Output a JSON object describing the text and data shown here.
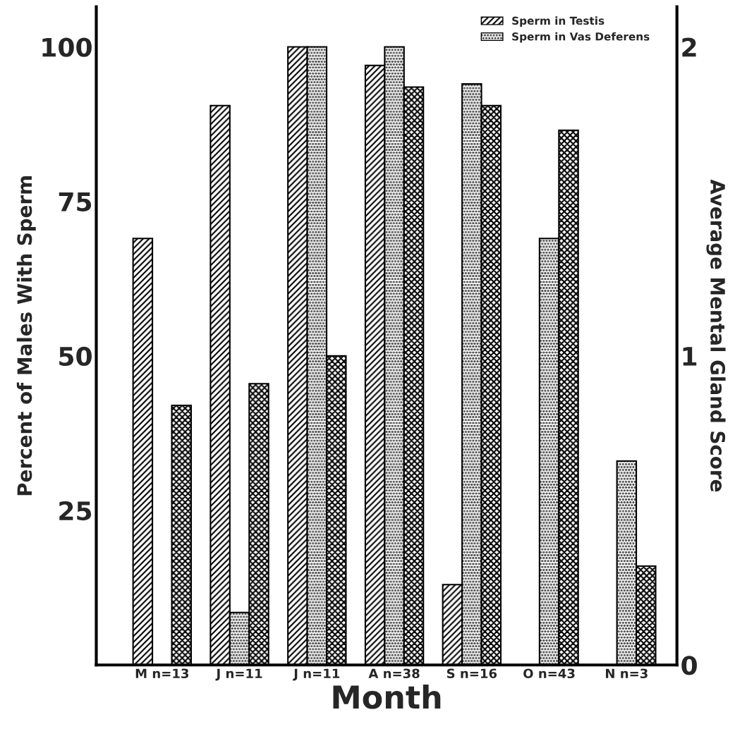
{
  "chart_data": {
    "type": "bar",
    "xlabel": "Month",
    "ylabel": "Percent of Males With Sperm",
    "y2label": "Average Mental Gland Score",
    "categories": [
      "M n=13",
      "J n=11",
      "J n=11",
      "A n=38",
      "S n=16",
      "O n=43",
      "N n=3"
    ],
    "series": [
      {
        "name": "Sperm in Testis",
        "color": "#000000",
        "values": [
          69,
          90.5,
          100,
          97,
          13,
          null,
          null
        ]
      },
      {
        "name": "Sperm in Vas Deferens",
        "color": "#000000",
        "values": [
          null,
          8.5,
          100,
          100,
          94,
          69,
          33
        ]
      },
      {
        "color": "#000000",
        "axis": "y2",
        "values": [
          0.84,
          0.91,
          1.0,
          1.87,
          1.81,
          1.73,
          0.32
        ]
      }
    ],
    "ylim": [
      0,
      106.5
    ],
    "yticks": [
      25,
      50,
      75,
      100
    ],
    "y2lim": [
      0,
      2.13
    ],
    "y2ticks": [
      0,
      1,
      2
    ],
    "legend": "top right",
    "grid": false
  }
}
